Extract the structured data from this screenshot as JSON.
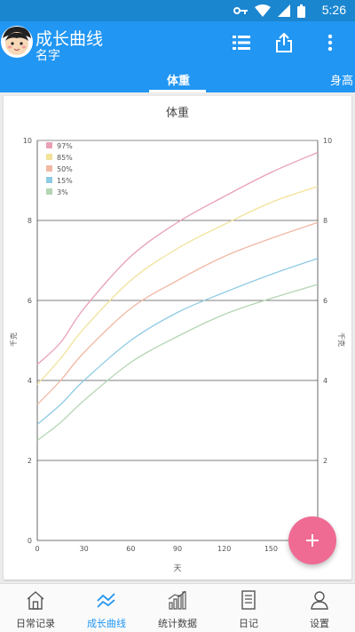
{
  "status_bar": {
    "time": "5:26"
  },
  "header": {
    "title": "成长曲线",
    "subtitle": "名字"
  },
  "tabs": [
    {
      "label": "体重",
      "selected": true
    },
    {
      "label": "身高",
      "selected": false
    }
  ],
  "chart_data": {
    "type": "line",
    "title": "体重",
    "xlabel": "天",
    "ylabel": "千克",
    "xlim": [
      0,
      180
    ],
    "ylim": [
      0,
      10
    ],
    "x_ticks": [
      "0",
      "30",
      "60",
      "90",
      "120",
      "150",
      "180"
    ],
    "y_ticks": [
      "0",
      "2",
      "4",
      "6",
      "8",
      "10"
    ],
    "grid": "horizontal",
    "legend_position": "top-left",
    "x": [
      0,
      15,
      30,
      60,
      90,
      120,
      150,
      180
    ],
    "series": [
      {
        "name": "97%",
        "color": "#e8a0b4",
        "values": [
          4.4,
          4.95,
          5.8,
          7.1,
          7.95,
          8.6,
          9.2,
          9.7
        ]
      },
      {
        "name": "85%",
        "color": "#f2e29a",
        "values": [
          3.9,
          4.55,
          5.3,
          6.5,
          7.3,
          7.9,
          8.45,
          8.85
        ]
      },
      {
        "name": "50%",
        "color": "#f0b8a4",
        "values": [
          3.4,
          4.0,
          4.7,
          5.8,
          6.5,
          7.1,
          7.55,
          7.95
        ]
      },
      {
        "name": "15%",
        "color": "#8fcbe4",
        "values": [
          2.9,
          3.4,
          4.0,
          5.0,
          5.7,
          6.2,
          6.65,
          7.05
        ]
      },
      {
        "name": "3%",
        "color": "#b4d6b4",
        "values": [
          2.5,
          2.95,
          3.5,
          4.45,
          5.1,
          5.65,
          6.05,
          6.4
        ]
      }
    ]
  },
  "fab": {
    "icon": "plus-icon"
  },
  "bottom_nav": [
    {
      "label": "日常记录",
      "icon": "home-icon",
      "active": false
    },
    {
      "label": "成长曲线",
      "icon": "trend-icon",
      "active": true
    },
    {
      "label": "统计数据",
      "icon": "bar-chart-icon",
      "active": false
    },
    {
      "label": "日记",
      "icon": "diary-icon",
      "active": false
    },
    {
      "label": "设置",
      "icon": "user-settings-icon",
      "active": false
    }
  ],
  "colors": {
    "primary": "#2196f3",
    "status_bar": "#1a86d0",
    "fab": "#ef6b94"
  }
}
